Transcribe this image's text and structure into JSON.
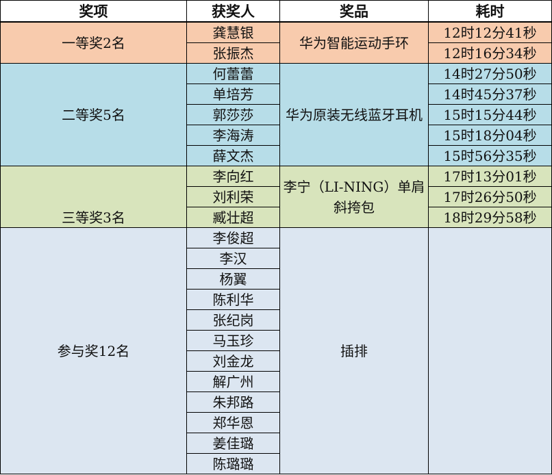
{
  "headers": [
    "奖项",
    "获奖人",
    "奖品",
    "耗时"
  ],
  "groups": [
    {
      "award": "一等奖2名",
      "prize": "华为智能运动手环",
      "color": "#F8CBAD",
      "winners": [
        "龚慧银",
        "张振杰"
      ],
      "times": [
        "12时12分41秒",
        "12时16分34秒"
      ]
    },
    {
      "award": "二等奖5名",
      "prize": "华为原装无线蓝牙耳机",
      "color": "#B7DDE8",
      "winners": [
        "何蕾蕾",
        "单培芳",
        "郭莎莎",
        "李海涛",
        "薛文杰"
      ],
      "times": [
        "14时27分50秒",
        "14时45分37秒",
        "15时15分44秒",
        "15时18分04秒",
        "15时56分35秒"
      ]
    },
    {
      "award": "三等奖3名",
      "prize": "李宁（LI-NING）单肩斜挎包",
      "color": "#D8E4BC",
      "winners": [
        "李向红",
        "刘利荣",
        "臧壮超"
      ],
      "times": [
        "17时13分01秒",
        "17时26分50秒",
        "18时29分58秒"
      ]
    },
    {
      "award": "参与奖12名",
      "prize": "插排",
      "color": "#DCE6F1",
      "winners": [
        "李俊超",
        "李汉",
        "杨翼",
        "陈利华",
        "张纪岗",
        "马玉珍",
        "刘金龙",
        "解广州",
        "朱邦路",
        "郑华恩",
        "姜佳璐",
        "陈璐璐"
      ],
      "times": []
    }
  ]
}
